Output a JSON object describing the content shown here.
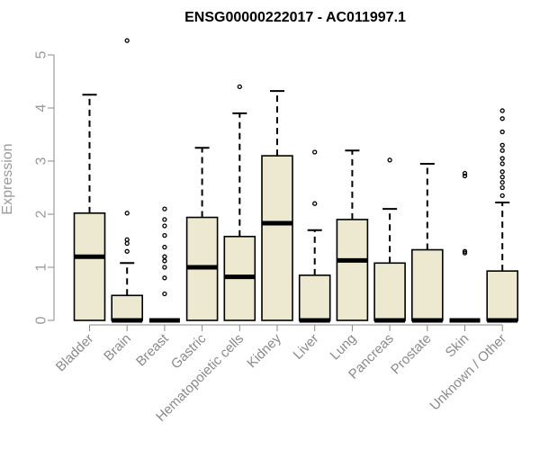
{
  "chart_data": {
    "type": "boxplot",
    "title": "ENSG00000222017 - AC011997.1",
    "xlabel": "",
    "ylabel": "Expression",
    "ylim": [
      0,
      5.3
    ],
    "yticks": [
      0,
      1,
      2,
      3,
      4,
      5
    ],
    "colors": {
      "box_fill": "#ede8d0",
      "box_stroke": "#000000",
      "axis": "#8a8a8a"
    },
    "categories": [
      "Bladder",
      "Brain",
      "Breast",
      "Gastric",
      "Hematopoietic cells",
      "Kidney",
      "Liver",
      "Lung",
      "Pancreas",
      "Prostate",
      "Skin",
      "Unknown / Other"
    ],
    "boxes": [
      {
        "min": 0,
        "q1": 0,
        "median": 1.2,
        "q3": 2.02,
        "max": 4.25,
        "outliers": []
      },
      {
        "min": 0,
        "q1": 0,
        "median": 0,
        "q3": 0.47,
        "max": 1.08,
        "outliers": [
          1.3,
          1.45,
          1.52,
          2.02,
          5.27
        ]
      },
      {
        "min": 0,
        "q1": 0,
        "median": 0,
        "q3": 0,
        "max": 0,
        "outliers": [
          0.5,
          0.8,
          1.0,
          1.12,
          1.2,
          1.38,
          1.6,
          1.78,
          1.9,
          2.1
        ]
      },
      {
        "min": 0,
        "q1": 0,
        "median": 1.0,
        "q3": 1.94,
        "max": 3.25,
        "outliers": []
      },
      {
        "min": 0,
        "q1": 0,
        "median": 0.82,
        "q3": 1.58,
        "max": 3.9,
        "outliers": [
          4.4
        ]
      },
      {
        "min": 0,
        "q1": 0,
        "median": 1.83,
        "q3": 3.1,
        "max": 4.32,
        "outliers": []
      },
      {
        "min": 0,
        "q1": 0,
        "median": 0,
        "q3": 0.85,
        "max": 1.7,
        "outliers": [
          2.2,
          3.17
        ]
      },
      {
        "min": 0,
        "q1": 0,
        "median": 1.13,
        "q3": 1.9,
        "max": 3.2,
        "outliers": []
      },
      {
        "min": 0,
        "q1": 0,
        "median": 0,
        "q3": 1.08,
        "max": 2.1,
        "outliers": [
          3.02
        ]
      },
      {
        "min": 0,
        "q1": 0,
        "median": 0,
        "q3": 1.33,
        "max": 2.95,
        "outliers": []
      },
      {
        "min": 0,
        "q1": 0,
        "median": 0,
        "q3": 0,
        "max": 0,
        "outliers": [
          1.27,
          1.3,
          2.72,
          2.77
        ]
      },
      {
        "min": 0,
        "q1": 0,
        "median": 0,
        "q3": 0.93,
        "max": 2.22,
        "outliers": [
          2.35,
          2.5,
          2.6,
          2.7,
          2.8,
          2.95,
          3.05,
          3.2,
          3.3,
          3.55,
          3.8,
          3.95
        ]
      }
    ]
  }
}
